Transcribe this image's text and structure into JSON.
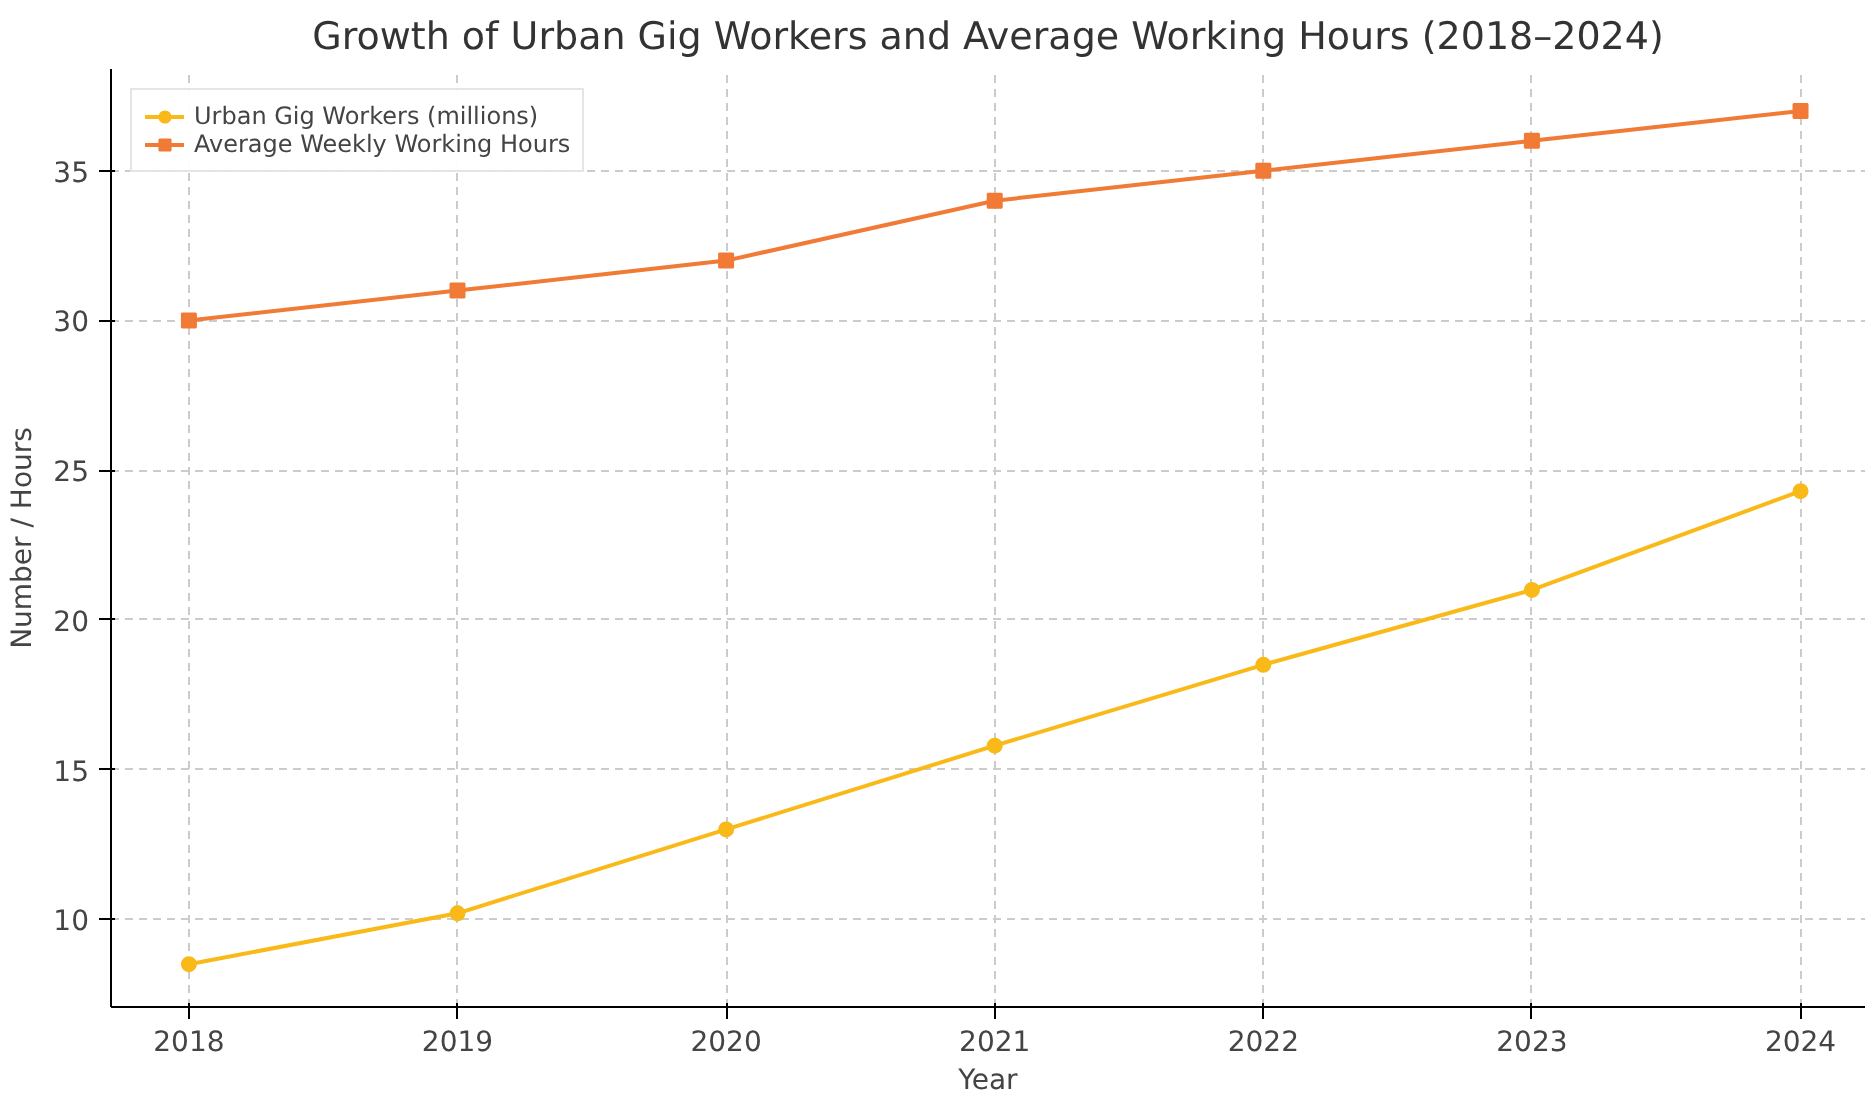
{
  "chart_data": {
    "type": "line",
    "title": "Growth of Urban Gig Workers and Average Working Hours (2018–2024)",
    "xlabel": "Year",
    "ylabel": "Number / Hours",
    "x": [
      2018,
      2019,
      2020,
      2021,
      2022,
      2023,
      2024
    ],
    "series": [
      {
        "name": "Urban Gig Workers (millions)",
        "color": "#f9b918",
        "marker": "circle",
        "values": [
          8.5,
          10.2,
          13.0,
          15.8,
          18.5,
          21.0,
          24.3
        ]
      },
      {
        "name": "Average Weekly Working Hours",
        "color": "#f07a36",
        "marker": "square",
        "values": [
          30,
          31,
          32,
          34,
          35,
          36,
          37
        ]
      }
    ],
    "xlim": [
      2017.71,
      2024.24
    ],
    "ylim": [
      7.07,
      38.4
    ],
    "xticks": [
      2018,
      2019,
      2020,
      2021,
      2022,
      2023,
      2024
    ],
    "yticks": [
      10,
      15,
      20,
      25,
      30,
      35
    ],
    "grid": true,
    "legend": "top left",
    "line_style": "solid"
  }
}
